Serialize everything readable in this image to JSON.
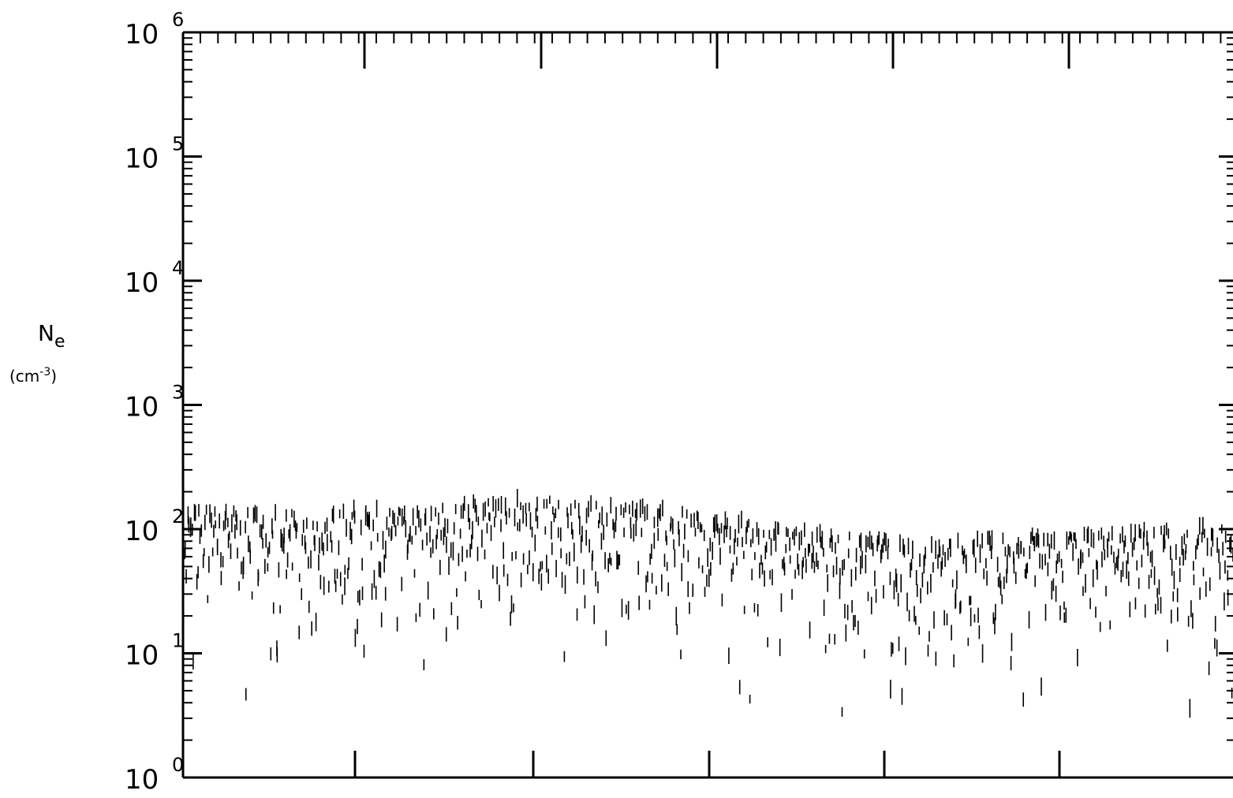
{
  "chart_data": {
    "type": "scatter",
    "title": "",
    "xlabel": "",
    "ylabel": "N",
    "ylabel_subscript": "e",
    "yunit": "(cm",
    "yunit_sup": "-3",
    "yunit_close": ")",
    "yscale": "log",
    "ylim": [
      1,
      1000000
    ],
    "xlim": [
      0,
      1
    ],
    "grid": false,
    "y_ticks": [
      {
        "base": "10",
        "exp": "0"
      },
      {
        "base": "10",
        "exp": "1"
      },
      {
        "base": "10",
        "exp": "2"
      },
      {
        "base": "10",
        "exp": "3"
      },
      {
        "base": "10",
        "exp": "4"
      },
      {
        "base": "10",
        "exp": "5"
      },
      {
        "base": "10",
        "exp": "6"
      }
    ],
    "series": [
      {
        "marker": "vertical-bar",
        "color": "#000000",
        "trend_x": [
          0.0,
          0.04,
          0.08,
          0.13,
          0.18,
          0.22,
          0.27,
          0.31,
          0.36,
          0.41,
          0.46,
          0.5,
          0.54,
          0.58,
          0.62,
          0.67,
          0.71,
          0.75,
          0.8,
          0.85,
          0.9,
          0.95,
          1.0
        ],
        "trend_y": [
          110,
          115,
          105,
          110,
          115,
          110,
          130,
          140,
          135,
          125,
          115,
          100,
          90,
          80,
          70,
          65,
          60,
          65,
          70,
          70,
          75,
          80,
          85
        ]
      }
    ]
  }
}
